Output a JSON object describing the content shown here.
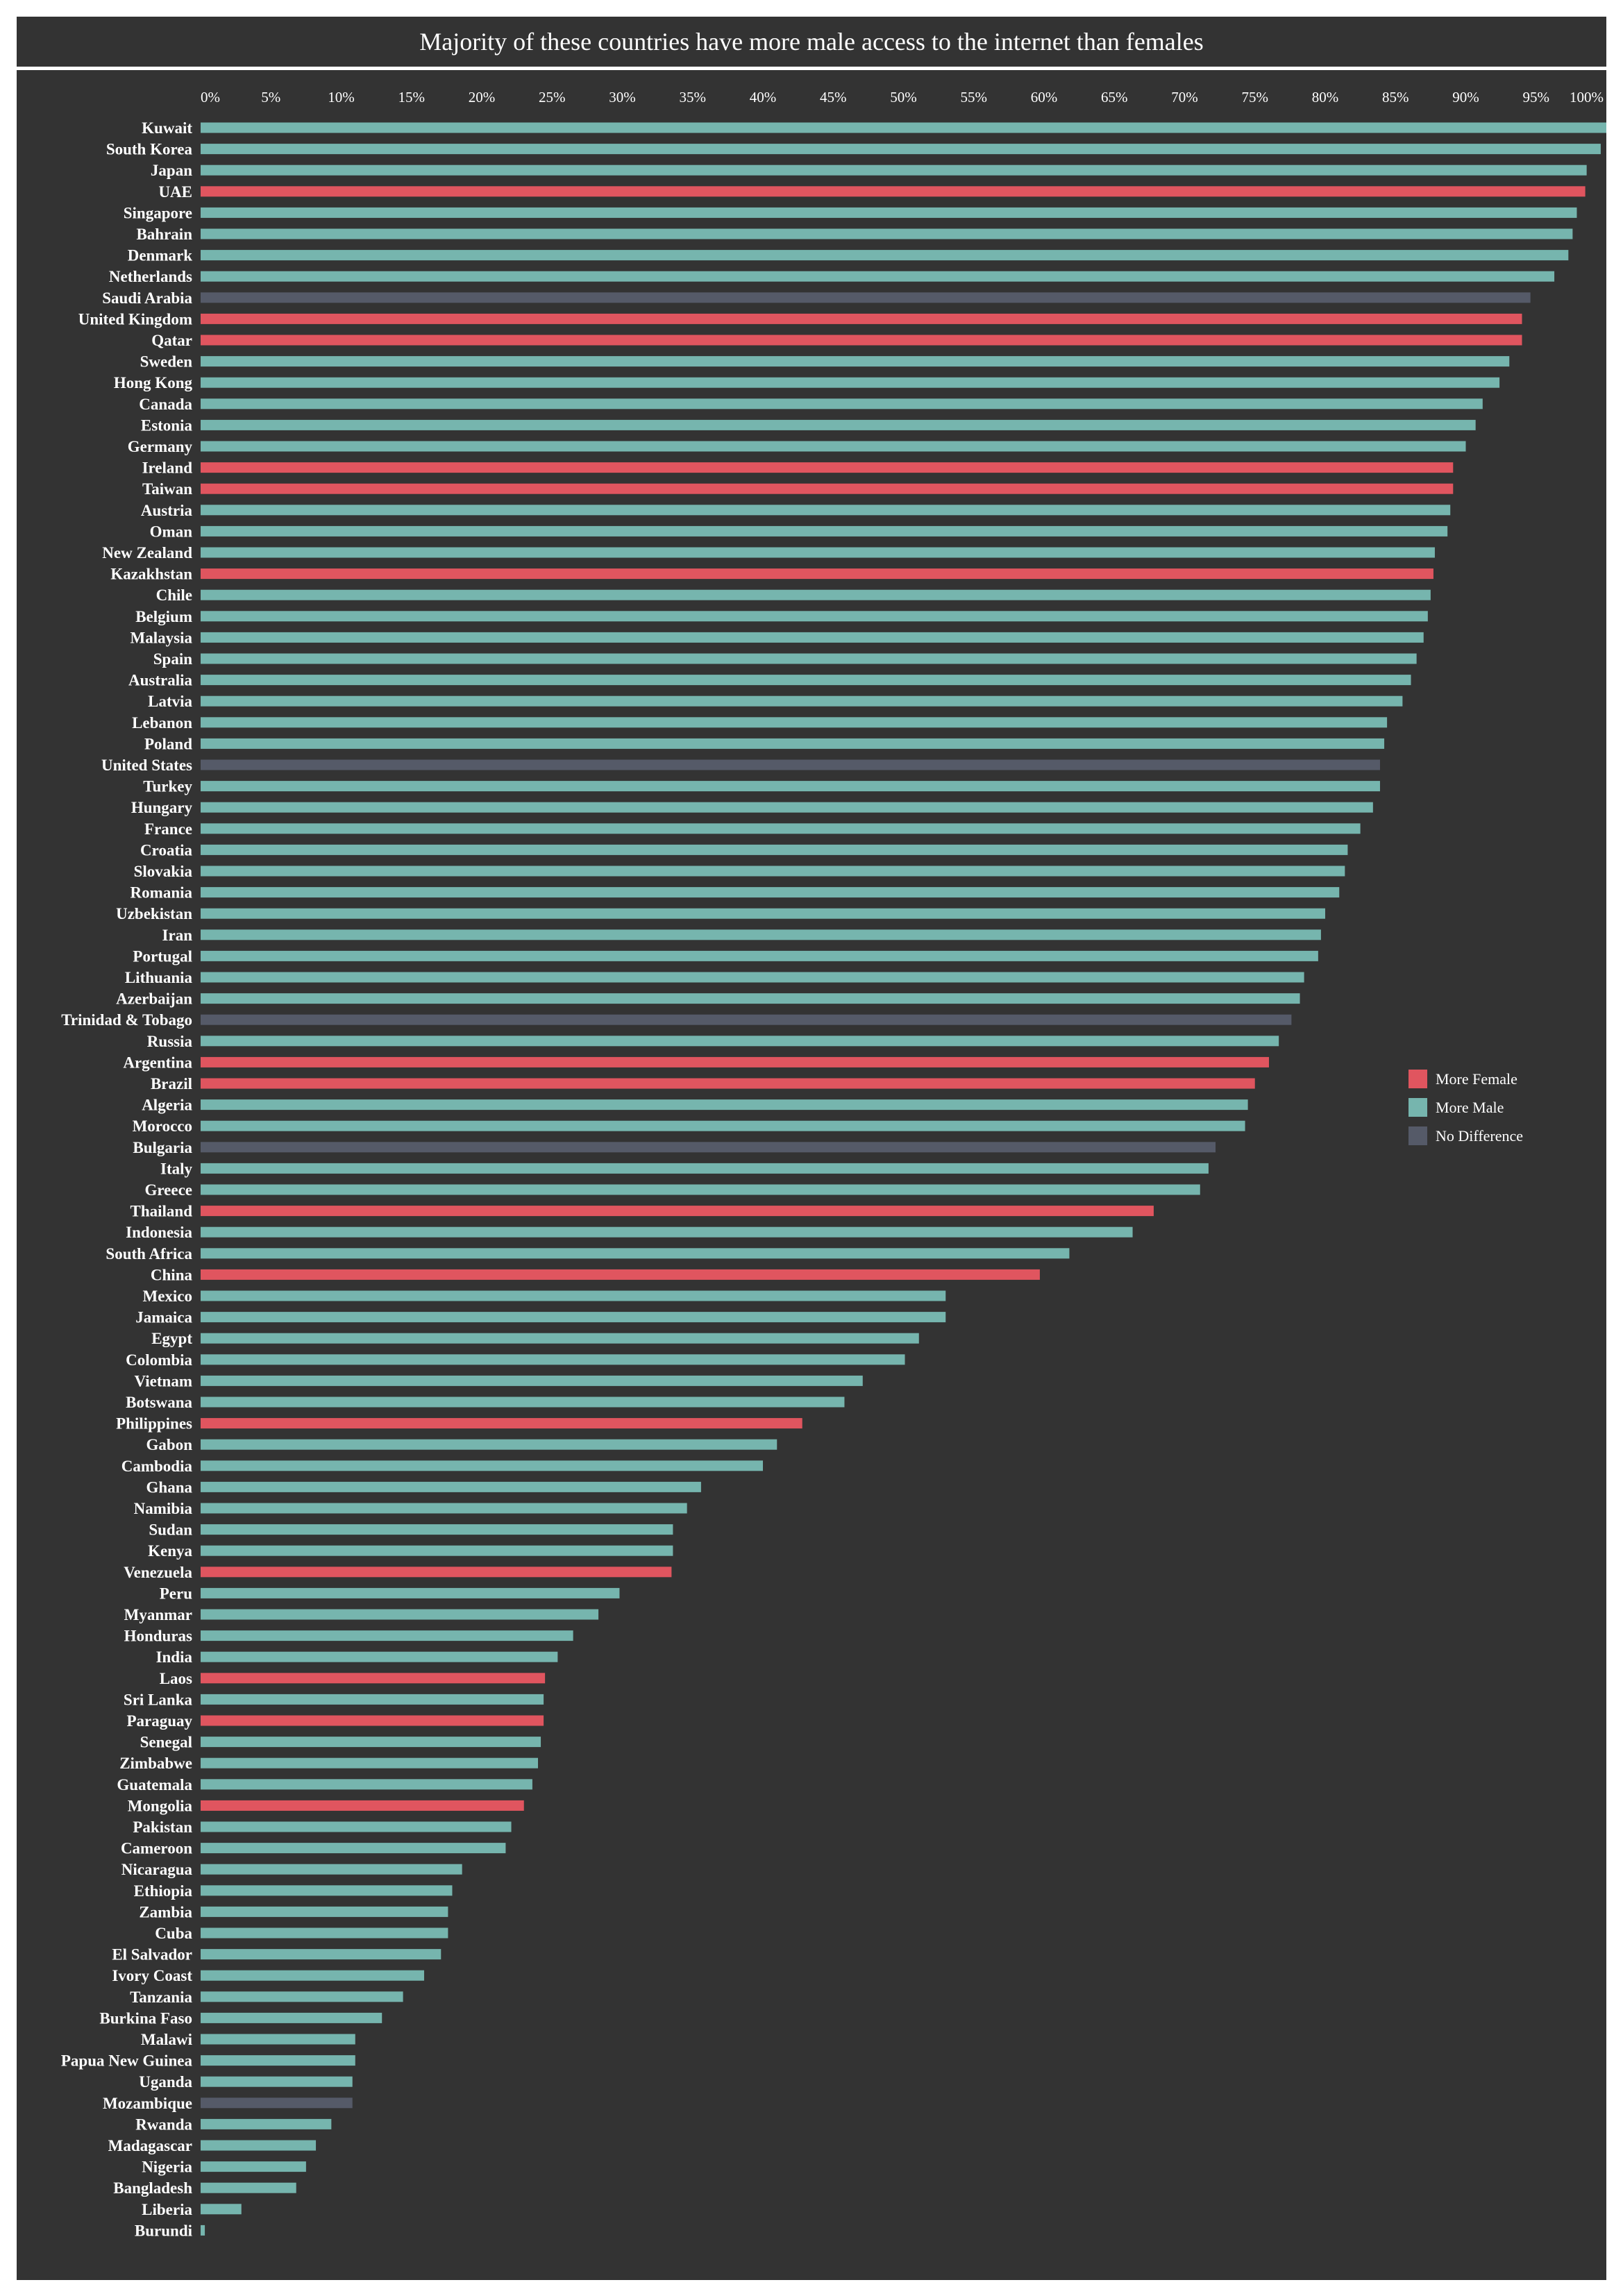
{
  "title": "Majority of these countries have more male access to the internet than females",
  "colors": {
    "background": "#333333",
    "more_female": "#e0555f",
    "more_male": "#76b5ae",
    "no_difference": "#555a68",
    "text": "#ffffff"
  },
  "legend": [
    {
      "label": "More Female",
      "key": "more_female"
    },
    {
      "label": "More Male",
      "key": "more_male"
    },
    {
      "label": "No Difference",
      "key": "no_difference"
    }
  ],
  "chart_data": {
    "type": "bar",
    "orientation": "horizontal",
    "x_ticks": [
      "0%",
      "5%",
      "10%",
      "15%",
      "20%",
      "25%",
      "30%",
      "35%",
      "40%",
      "45%",
      "50%",
      "55%",
      "60%",
      "65%",
      "70%",
      "75%",
      "80%",
      "85%",
      "90%",
      "95%",
      "100%"
    ],
    "xlim": [
      0,
      100
    ],
    "grid": false,
    "legend_position": "right",
    "categories": [
      "Kuwait",
      "South Korea",
      "Japan",
      "UAE",
      "Singapore",
      "Bahrain",
      "Denmark",
      "Netherlands",
      "Saudi Arabia",
      "United Kingdom",
      "Qatar",
      "Sweden",
      "Hong Kong",
      "Canada",
      "Estonia",
      "Germany",
      "Ireland",
      "Taiwan",
      "Austria",
      "Oman",
      "New Zealand",
      "Kazakhstan",
      "Chile",
      "Belgium",
      "Malaysia",
      "Spain",
      "Australia",
      "Latvia",
      "Lebanon",
      "Poland",
      "United States",
      "Turkey",
      "Hungary",
      "France",
      "Croatia",
      "Slovakia",
      "Romania",
      "Uzbekistan",
      "Iran",
      "Portugal",
      "Lithuania",
      "Azerbaijan",
      "Trinidad & Tobago",
      "Russia",
      "Argentina",
      "Brazil",
      "Algeria",
      "Morocco",
      "Bulgaria",
      "Italy",
      "Greece",
      "Thailand",
      "Indonesia",
      "South Africa",
      "China",
      "Mexico",
      "Jamaica",
      "Egypt",
      "Colombia",
      "Vietnam",
      "Botswana",
      "Philippines",
      "Gabon",
      "Cambodia",
      "Ghana",
      "Namibia",
      "Sudan",
      "Kenya",
      "Venezuela",
      "Peru",
      "Myanmar",
      "Honduras",
      "India",
      "Laos",
      "Sri Lanka",
      "Paraguay",
      "Senegal",
      "Zimbabwe",
      "Guatemala",
      "Mongolia",
      "Pakistan",
      "Cameroon",
      "Nicaragua",
      "Ethiopia",
      "Zambia",
      "Cuba",
      "El Salvador",
      "Ivory Coast",
      "Tanzania",
      "Burkina Faso",
      "Malawi",
      "Papua New Guinea",
      "Uganda",
      "Mozambique",
      "Rwanda",
      "Madagascar",
      "Nigeria",
      "Bangladesh",
      "Liberia",
      "Burundi"
    ],
    "values": [
      100,
      99.6,
      98.6,
      98.5,
      97.9,
      97.6,
      97.3,
      96.3,
      94.6,
      94.0,
      94.0,
      93.1,
      92.4,
      91.2,
      90.7,
      90.0,
      89.1,
      89.1,
      88.9,
      88.7,
      87.8,
      87.7,
      87.5,
      87.3,
      87.0,
      86.5,
      86.1,
      85.5,
      84.4,
      84.2,
      83.9,
      83.9,
      83.4,
      82.5,
      81.6,
      81.4,
      81.0,
      80.0,
      79.7,
      79.5,
      78.5,
      78.2,
      77.6,
      76.7,
      76.0,
      75.0,
      74.5,
      74.3,
      72.2,
      71.7,
      71.1,
      67.8,
      66.3,
      61.8,
      59.7,
      53.0,
      53.0,
      51.1,
      50.1,
      47.1,
      45.8,
      42.8,
      41.0,
      40.0,
      35.6,
      34.6,
      33.6,
      33.6,
      33.5,
      29.8,
      28.3,
      26.5,
      25.4,
      24.5,
      24.4,
      24.4,
      24.2,
      24.0,
      23.6,
      23.0,
      22.1,
      21.7,
      18.6,
      17.9,
      17.6,
      17.6,
      17.1,
      15.9,
      14.4,
      12.9,
      11.0,
      11.0,
      10.8,
      10.8,
      9.3,
      8.2,
      7.5,
      6.8,
      2.9,
      0.3
    ],
    "groups": [
      "more_male",
      "more_male",
      "more_male",
      "more_female",
      "more_male",
      "more_male",
      "more_male",
      "more_male",
      "no_difference",
      "more_female",
      "more_female",
      "more_male",
      "more_male",
      "more_male",
      "more_male",
      "more_male",
      "more_female",
      "more_female",
      "more_male",
      "more_male",
      "more_male",
      "more_female",
      "more_male",
      "more_male",
      "more_male",
      "more_male",
      "more_male",
      "more_male",
      "more_male",
      "more_male",
      "no_difference",
      "more_male",
      "more_male",
      "more_male",
      "more_male",
      "more_male",
      "more_male",
      "more_male",
      "more_male",
      "more_male",
      "more_male",
      "more_male",
      "no_difference",
      "more_male",
      "more_female",
      "more_female",
      "more_male",
      "more_male",
      "no_difference",
      "more_male",
      "more_male",
      "more_female",
      "more_male",
      "more_male",
      "more_female",
      "more_male",
      "more_male",
      "more_male",
      "more_male",
      "more_male",
      "more_male",
      "more_female",
      "more_male",
      "more_male",
      "more_male",
      "more_male",
      "more_male",
      "more_male",
      "more_female",
      "more_male",
      "more_male",
      "more_male",
      "more_male",
      "more_female",
      "more_male",
      "more_female",
      "more_male",
      "more_male",
      "more_male",
      "more_female",
      "more_male",
      "more_male",
      "more_male",
      "more_male",
      "more_male",
      "more_male",
      "more_male",
      "more_male",
      "more_male",
      "more_male",
      "more_male",
      "more_male",
      "more_male",
      "no_difference",
      "more_male",
      "more_male",
      "more_male",
      "more_male",
      "more_male",
      "more_male"
    ]
  }
}
